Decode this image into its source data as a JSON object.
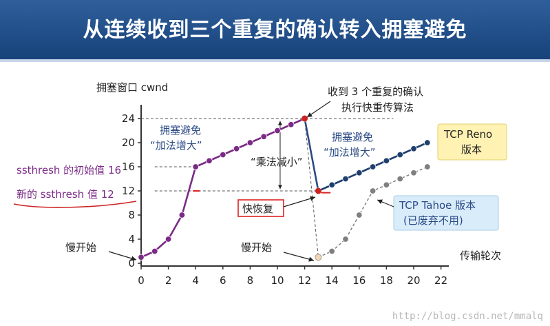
{
  "page": {
    "title": "从连续收到三个重复的确认转入拥塞避免",
    "watermark": "http://blog.csdn.net/mmalq"
  },
  "chart_data": {
    "type": "line",
    "ylabel": "拥塞窗口 cwnd",
    "xlabel": "传输轮次",
    "xlim": [
      0,
      22
    ],
    "ylim": [
      0,
      24
    ],
    "xticks": [
      0,
      2,
      4,
      6,
      8,
      10,
      12,
      14,
      16,
      18,
      20,
      22
    ],
    "yticks": [
      0,
      4,
      8,
      12,
      16,
      20,
      24
    ],
    "series": [
      {
        "name": "TCP Reno 版本",
        "color": "#7b2a86",
        "x": [
          0,
          1,
          2,
          3,
          4,
          5,
          6,
          7,
          8,
          9,
          10,
          11,
          12
        ],
        "y": [
          1,
          2,
          4,
          8,
          16,
          17,
          18,
          19,
          20,
          21,
          22,
          23,
          24
        ]
      },
      {
        "name": "TCP Reno 版本",
        "color": "#1f3f6e",
        "x": [
          13,
          14,
          15,
          16,
          17,
          18,
          19,
          20,
          21
        ],
        "y": [
          12,
          13,
          14,
          15,
          16,
          17,
          18,
          19,
          20
        ]
      },
      {
        "name": "TCP Tahoe 版本 (已废弃不用)",
        "color": "#7f7f7f",
        "x": [
          13,
          14,
          15,
          16,
          17,
          18,
          19,
          20,
          21
        ],
        "y": [
          1,
          2,
          4,
          8,
          12,
          13,
          14,
          15,
          16
        ]
      }
    ],
    "annotations": {
      "ssthresh_initial": "ssthresh 的初始值 16",
      "ssthresh_new": "新的 ssthresh 值 12",
      "slow_start_1": "慢开始",
      "slow_start_2": "慢开始",
      "ca_1_line1": "拥塞避免",
      "ca_1_line2": "“加法增大”",
      "ca_2_line1": "拥塞避免",
      "ca_2_line2": "“加法增大”",
      "md": "“乘法减小”",
      "dupack_line1": "收到 3 个重复的确认",
      "dupack_line2": "执行快重传算法",
      "fast_recovery": "快恢复",
      "reno_line1": "TCP Reno",
      "reno_line2": "版本",
      "tahoe_line1": "TCP Tahoe 版本",
      "tahoe_line2": "(已废弃不用)"
    }
  }
}
